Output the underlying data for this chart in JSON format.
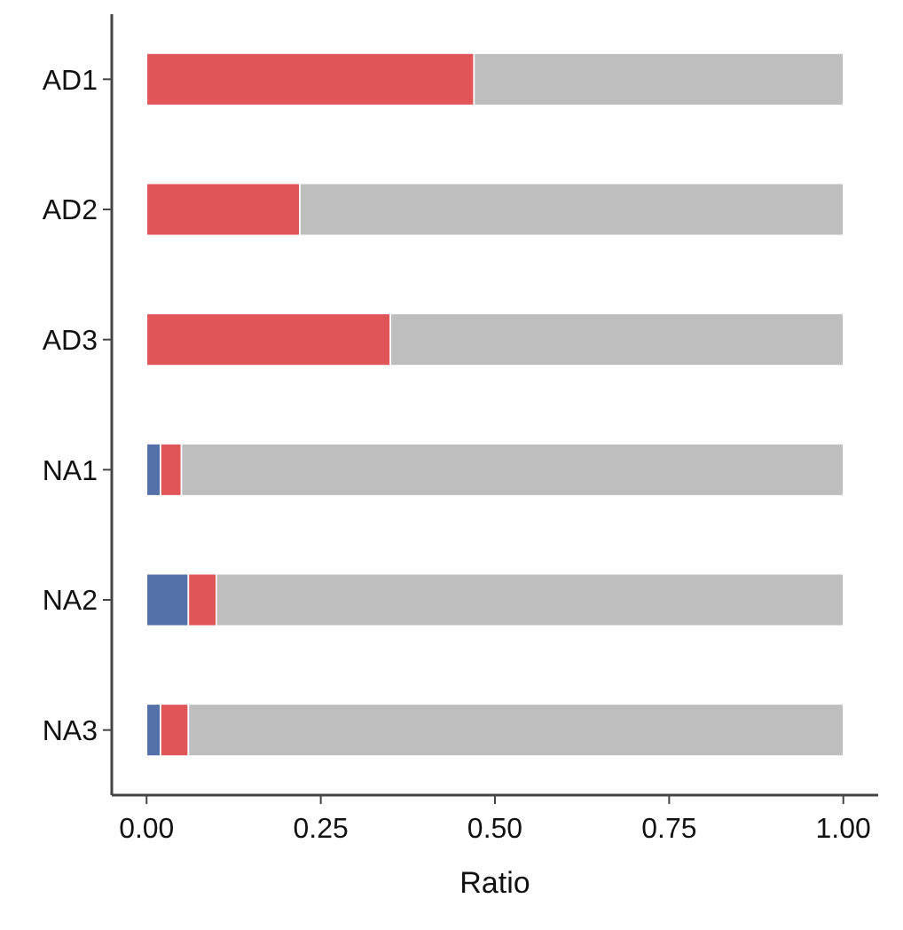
{
  "chart_data": {
    "type": "bar",
    "orientation": "horizontal",
    "stacked": true,
    "xlabel": "Ratio",
    "categories": [
      "AD1",
      "AD2",
      "AD3",
      "NA1",
      "NA2",
      "NA3"
    ],
    "series": [
      {
        "color": "#5470a8",
        "values": [
          0,
          0,
          0,
          0.02,
          0.06,
          0.02
        ]
      },
      {
        "color": "#e05558",
        "values": [
          0.47,
          0.22,
          0.35,
          0.03,
          0.04,
          0.04
        ]
      },
      {
        "color": "#bebebe",
        "values": [
          0.53,
          0.78,
          0.65,
          0.95,
          0.9,
          0.94
        ]
      }
    ],
    "xlim": [
      -0.05,
      1.05
    ],
    "xticks": [
      {
        "value": 0,
        "label": "0.00"
      },
      {
        "value": 0.25,
        "label": "0.25"
      },
      {
        "value": 0.5,
        "label": "0.50"
      },
      {
        "value": 0.75,
        "label": "0.75"
      },
      {
        "value": 1,
        "label": "1.00"
      }
    ],
    "grid": false
  }
}
